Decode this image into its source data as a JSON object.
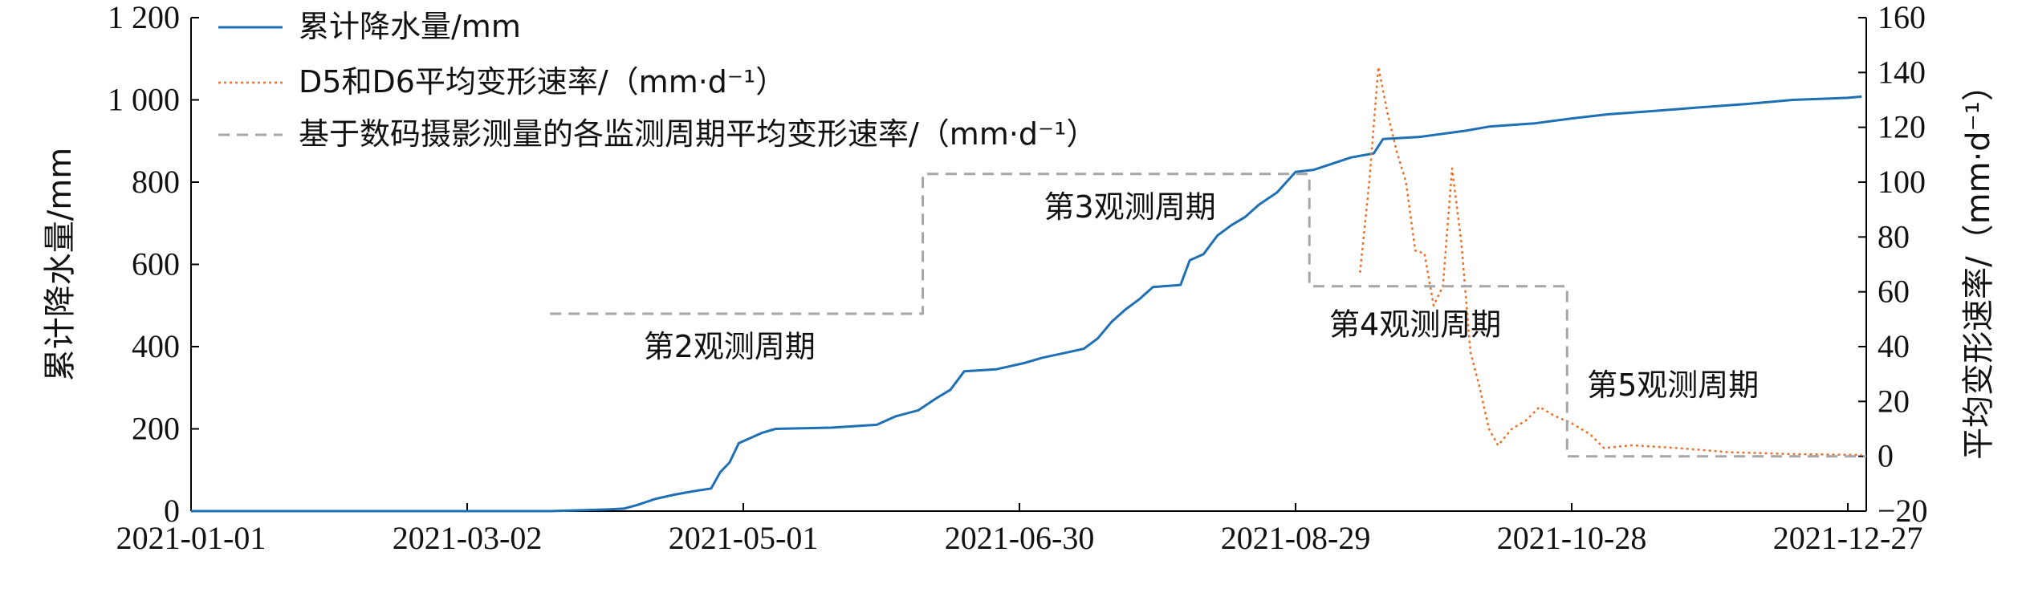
{
  "chart_data": {
    "type": "line",
    "x_axis": {
      "type": "date",
      "range": [
        "2021-01-01",
        "2021-12-31"
      ],
      "tick_dates": [
        "2021-01-01",
        "2021-03-02",
        "2021-05-01",
        "2021-06-30",
        "2021-08-29",
        "2021-10-28",
        "2021-12-27"
      ],
      "tick_labels": [
        "2021-01-01",
        "2021-03-02",
        "2021-05-01",
        "2021-06-30",
        "2021-08-29",
        "2021-10-28",
        "2021-12-27"
      ]
    },
    "y_left": {
      "label": "累计降水量/mm",
      "range": [
        0,
        1200
      ],
      "ticks": [
        0,
        200,
        400,
        600,
        800,
        1000,
        1200
      ],
      "tick_labels": [
        "0",
        "200",
        "400",
        "600",
        "800",
        "1 000",
        "1 200"
      ]
    },
    "y_right": {
      "label": "平均变形速率/（mm·d⁻¹）",
      "range": [
        -20,
        160
      ],
      "ticks": [
        -20,
        0,
        20,
        40,
        60,
        80,
        100,
        120,
        140,
        160
      ],
      "tick_labels": [
        "−20",
        "0",
        "20",
        "40",
        "60",
        "80",
        "100",
        "120",
        "140",
        "160"
      ]
    },
    "legend": {
      "placement": "top-left",
      "entries": [
        "累计降水量/mm",
        "D5和D6平均变形速率/（mm·d⁻¹）",
        "基于数码摄影测量的各监测周期平均变形速率/（mm·d⁻¹）"
      ]
    },
    "series": [
      {
        "name": "累计降水量/mm",
        "axis": "left",
        "style": "solid",
        "color": "#1f6fb4",
        "points": [
          [
            "2021-01-01",
            0
          ],
          [
            "2021-03-20",
            0
          ],
          [
            "2021-04-01",
            4
          ],
          [
            "2021-04-05",
            6
          ],
          [
            "2021-04-08",
            15
          ],
          [
            "2021-04-12",
            30
          ],
          [
            "2021-04-16",
            40
          ],
          [
            "2021-04-20",
            48
          ],
          [
            "2021-04-24",
            55
          ],
          [
            "2021-04-26",
            95
          ],
          [
            "2021-04-28",
            118
          ],
          [
            "2021-04-30",
            165
          ],
          [
            "2021-05-02",
            175
          ],
          [
            "2021-05-05",
            190
          ],
          [
            "2021-05-08",
            200
          ],
          [
            "2021-05-20",
            203
          ],
          [
            "2021-05-30",
            210
          ],
          [
            "2021-06-03",
            230
          ],
          [
            "2021-06-08",
            245
          ],
          [
            "2021-06-12",
            275
          ],
          [
            "2021-06-15",
            295
          ],
          [
            "2021-06-18",
            340
          ],
          [
            "2021-06-25",
            345
          ],
          [
            "2021-07-01",
            360
          ],
          [
            "2021-07-05",
            373
          ],
          [
            "2021-07-10",
            385
          ],
          [
            "2021-07-14",
            395
          ],
          [
            "2021-07-17",
            420
          ],
          [
            "2021-07-20",
            460
          ],
          [
            "2021-07-23",
            490
          ],
          [
            "2021-07-26",
            515
          ],
          [
            "2021-07-29",
            545
          ],
          [
            "2021-08-04",
            550
          ],
          [
            "2021-08-06",
            610
          ],
          [
            "2021-08-09",
            625
          ],
          [
            "2021-08-12",
            670
          ],
          [
            "2021-08-15",
            695
          ],
          [
            "2021-08-18",
            715
          ],
          [
            "2021-08-21",
            745
          ],
          [
            "2021-08-25",
            775
          ],
          [
            "2021-08-29",
            825
          ],
          [
            "2021-09-02",
            830
          ],
          [
            "2021-09-06",
            845
          ],
          [
            "2021-09-10",
            860
          ],
          [
            "2021-09-15",
            870
          ],
          [
            "2021-09-17",
            905
          ],
          [
            "2021-09-25",
            910
          ],
          [
            "2021-10-05",
            925
          ],
          [
            "2021-10-10",
            935
          ],
          [
            "2021-10-20",
            943
          ],
          [
            "2021-10-28",
            955
          ],
          [
            "2021-11-05",
            965
          ],
          [
            "2021-11-15",
            973
          ],
          [
            "2021-11-25",
            982
          ],
          [
            "2021-12-05",
            990
          ],
          [
            "2021-12-15",
            1000
          ],
          [
            "2021-12-27",
            1005
          ],
          [
            "2021-12-30",
            1008
          ]
        ]
      },
      {
        "name": "D5和D6平均变形速率/（mm·d⁻¹）",
        "axis": "right",
        "style": "dotted",
        "color": "#e8722d",
        "points": [
          [
            "2021-09-12",
            67
          ],
          [
            "2021-09-14",
            100
          ],
          [
            "2021-09-16",
            142
          ],
          [
            "2021-09-18",
            125
          ],
          [
            "2021-09-20",
            111
          ],
          [
            "2021-09-22",
            100
          ],
          [
            "2021-09-24",
            75
          ],
          [
            "2021-09-26",
            74
          ],
          [
            "2021-09-28",
            55
          ],
          [
            "2021-09-30",
            62
          ],
          [
            "2021-10-02",
            105
          ],
          [
            "2021-10-04",
            78
          ],
          [
            "2021-10-06",
            38
          ],
          [
            "2021-10-08",
            25
          ],
          [
            "2021-10-10",
            10
          ],
          [
            "2021-10-12",
            4
          ],
          [
            "2021-10-15",
            10
          ],
          [
            "2021-10-18",
            13
          ],
          [
            "2021-10-21",
            18
          ],
          [
            "2021-10-24",
            15
          ],
          [
            "2021-10-28",
            12
          ],
          [
            "2021-11-01",
            8
          ],
          [
            "2021-11-04",
            3
          ],
          [
            "2021-11-10",
            4
          ],
          [
            "2021-11-20",
            3
          ],
          [
            "2021-12-01",
            1.5
          ],
          [
            "2021-12-15",
            0.8
          ],
          [
            "2021-12-30",
            0.5
          ]
        ]
      },
      {
        "name": "基于数码摄影测量的各监测周期平均变形速率/（mm·d⁻¹）",
        "axis": "right",
        "style": "dashed",
        "color": "#a6a6a6",
        "points": [
          [
            "2021-03-20",
            52
          ],
          [
            "2021-06-09",
            52
          ],
          [
            "2021-06-09",
            103
          ],
          [
            "2021-09-01",
            103
          ],
          [
            "2021-09-01",
            62
          ],
          [
            "2021-10-27",
            62
          ],
          [
            "2021-10-27",
            0
          ],
          [
            "2021-12-31",
            0
          ]
        ]
      }
    ],
    "annotations": [
      {
        "text": "第2观测周期",
        "x": "2021-04-28",
        "y": 40
      },
      {
        "text": "第3观测周期",
        "x": "2021-07-24",
        "y": 91
      },
      {
        "text": "第4观测周期",
        "x": "2021-09-24",
        "y": 48
      },
      {
        "text": "第5观测周期",
        "x": "2021-11-19",
        "y": 26
      }
    ]
  }
}
